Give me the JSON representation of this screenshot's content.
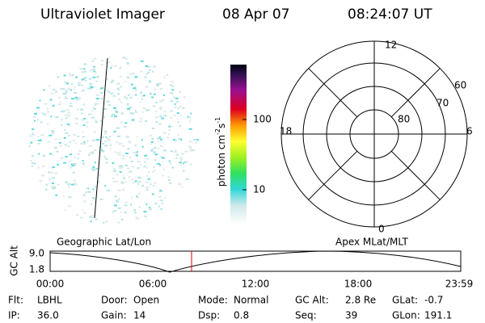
{
  "header": {
    "title": "Ultraviolet Imager",
    "date": "08 Apr 07",
    "time": "08:24:07 UT"
  },
  "colorbar": {
    "ticks": [
      "100",
      "10"
    ],
    "unit": {
      "base": "photon cm",
      "exp1": "-2",
      "mid": "s",
      "exp2": "-1"
    }
  },
  "polar": {
    "mlt_labels": [
      "12",
      "18",
      "6",
      "0"
    ],
    "lat_labels": [
      "60",
      "70",
      "80"
    ]
  },
  "strip": {
    "left_label": "Geographic Lat/Lon",
    "right_label": "Apex MLat/MLT",
    "axis_label": "GC Alt",
    "y_labels": [
      "9.0",
      "1.8"
    ],
    "time_labels": [
      "00:00",
      "06:00",
      "12:00",
      "18:00",
      "23:59"
    ]
  },
  "info": [
    [
      {
        "label": "Flt:",
        "value": "LBHL"
      },
      {
        "label": "Door:",
        "value": "Open"
      },
      {
        "label": "Mode:",
        "value": "Normal"
      },
      {
        "label": "GC Alt:",
        "value": "2.8 Re"
      },
      {
        "label": "GLat:",
        "value": "-0.7"
      }
    ],
    [
      {
        "label": "IP:",
        "value": "36.0"
      },
      {
        "label": "Gain:",
        "value": "14"
      },
      {
        "label": "Dsp:",
        "value": "0.8"
      },
      {
        "label": "Seq:",
        "value": "39"
      },
      {
        "label": "GLon:",
        "value": "191.1"
      }
    ]
  ]
}
